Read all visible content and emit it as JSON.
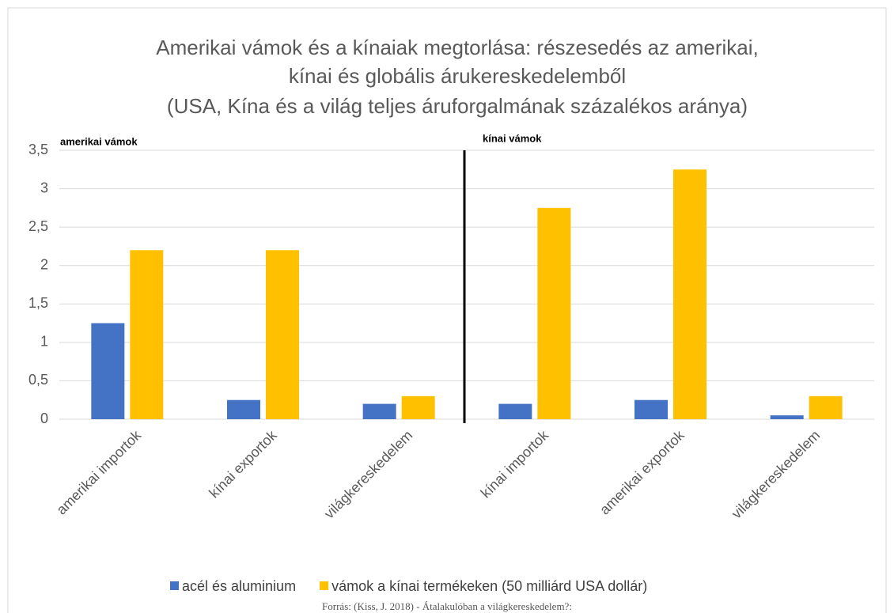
{
  "chart_data": {
    "type": "bar",
    "title": [
      "Amerikai vámok és a kínaiak megtorlása: részesedés az amerikai,",
      "kínai és globális árukereskedelemből"
    ],
    "subtitle": "(USA, Kína és a világ teljes áruforgalmának százalékos aránya)",
    "annotations": [
      "amerikai vámok",
      "kínai vámok"
    ],
    "source": "Forrás: (Kiss, J. 2018) - Átalakulóban a világkereskedelem?:",
    "categories": [
      "amerikai importok",
      "kínai exportok",
      "világkereskedelem",
      "kínai importok",
      "amerikai exportok",
      "világkereskedelem"
    ],
    "series": [
      {
        "name": "acél és aluminium",
        "color": "#4472c4",
        "values": [
          1.25,
          0.25,
          0.2,
          0.2,
          0.25,
          0.05
        ]
      },
      {
        "name": "vámok a kínai termékeken (50 milliárd USA dollár)",
        "color": "#ffc000",
        "values": [
          2.2,
          2.2,
          0.3,
          2.75,
          3.25,
          0.3
        ]
      }
    ],
    "ylim": [
      0,
      3.5
    ],
    "yticks": [
      0,
      {
        "value": 0.5,
        "label": "0,5"
      },
      1,
      {
        "value": 1.5,
        "label": "1,5"
      },
      2,
      {
        "value": 2.5,
        "label": "2,5"
      },
      3,
      {
        "value": 3.5,
        "label": "3,5"
      }
    ],
    "grid": true,
    "legend": "bottom"
  }
}
